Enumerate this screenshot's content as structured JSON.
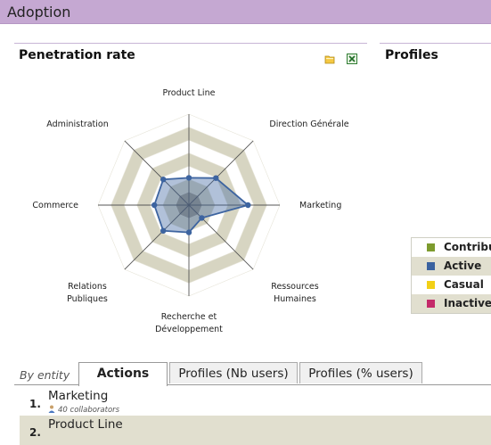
{
  "header": {
    "title": "Adoption"
  },
  "panels": {
    "penetration": {
      "title": "Penetration rate"
    },
    "profiles": {
      "title": "Profiles"
    }
  },
  "toolbar": {
    "open_icon": "folder-icon",
    "export_icon": "excel-export-icon"
  },
  "chart_data": {
    "type": "radar",
    "categories": [
      "Product Line",
      "Direction Générale",
      "Marketing",
      "Ressources Humaines",
      "Recherche et Développement",
      "Relations Publiques",
      "Commerce",
      "Administration"
    ],
    "series": [
      {
        "name": "",
        "values": [
          0.3,
          0.42,
          0.65,
          0.2,
          0.3,
          0.4,
          0.38,
          0.4
        ],
        "color": "#3d64a0"
      }
    ],
    "range": [
      0,
      1
    ],
    "rings": 7,
    "band_color": "#d7d5c2",
    "grid": true
  },
  "legend": [
    {
      "label": "Contribut",
      "color": "#7d9b2e"
    },
    {
      "label": "Active",
      "color": "#3a62a0"
    },
    {
      "label": "Casual",
      "color": "#f2d016"
    },
    {
      "label": "Inactive",
      "color": "#c42a6a"
    }
  ],
  "tabs": {
    "caption": "By entity",
    "items": [
      "Actions",
      "Profiles (Nb users)",
      "Profiles (% users)"
    ]
  },
  "rows": [
    {
      "num": "1.",
      "name": "Marketing",
      "sub": "40 collaborators"
    },
    {
      "num": "2.",
      "name": "Product Line",
      "sub": ""
    }
  ]
}
